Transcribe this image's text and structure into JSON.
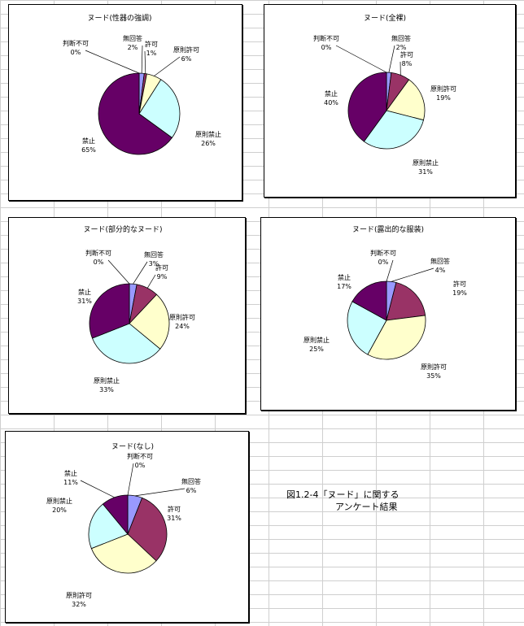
{
  "colors": {
    "無回答": "#9999ff",
    "許可": "#993366",
    "原則許可": "#ffffcc",
    "原則禁止": "#ccffff",
    "禁止": "#660066",
    "判断不可": "#3366ff"
  },
  "caption": {
    "line1": "図1.2-4「ヌード」に関する",
    "line2": "アンケート結果"
  },
  "chart_data": [
    {
      "type": "pie",
      "title": "ヌード(性器の強調)",
      "slices": [
        {
          "label": "判断不可",
          "value": 0,
          "pct": "0%"
        },
        {
          "label": "無回答",
          "value": 2,
          "pct": "2%"
        },
        {
          "label": "許可",
          "value": 1,
          "pct": "1%"
        },
        {
          "label": "原則許可",
          "value": 6,
          "pct": "6%"
        },
        {
          "label": "原則禁止",
          "value": 26,
          "pct": "26%"
        },
        {
          "label": "禁止",
          "value": 65,
          "pct": "65%"
        }
      ]
    },
    {
      "type": "pie",
      "title": "ヌード(全裸)",
      "slices": [
        {
          "label": "判断不可",
          "value": 0,
          "pct": "0%"
        },
        {
          "label": "無回答",
          "value": 2,
          "pct": "2%"
        },
        {
          "label": "許可",
          "value": 8,
          "pct": "8%"
        },
        {
          "label": "原則許可",
          "value": 19,
          "pct": "19%"
        },
        {
          "label": "原則禁止",
          "value": 31,
          "pct": "31%"
        },
        {
          "label": "禁止",
          "value": 40,
          "pct": "40%"
        }
      ]
    },
    {
      "type": "pie",
      "title": "ヌード(部分的なヌード)",
      "slices": [
        {
          "label": "判断不可",
          "value": 0,
          "pct": "0%"
        },
        {
          "label": "無回答",
          "value": 3,
          "pct": "3%"
        },
        {
          "label": "許可",
          "value": 9,
          "pct": "9%"
        },
        {
          "label": "原則許可",
          "value": 24,
          "pct": "24%"
        },
        {
          "label": "原則禁止",
          "value": 33,
          "pct": "33%"
        },
        {
          "label": "禁止",
          "value": 31,
          "pct": "31%"
        }
      ]
    },
    {
      "type": "pie",
      "title": "ヌード(露出的な服装)",
      "slices": [
        {
          "label": "判断不可",
          "value": 0,
          "pct": "0%"
        },
        {
          "label": "無回答",
          "value": 4,
          "pct": "4%"
        },
        {
          "label": "許可",
          "value": 19,
          "pct": "19%"
        },
        {
          "label": "原則許可",
          "value": 35,
          "pct": "35%"
        },
        {
          "label": "原則禁止",
          "value": 25,
          "pct": "25%"
        },
        {
          "label": "禁止",
          "value": 17,
          "pct": "17%"
        }
      ]
    },
    {
      "type": "pie",
      "title": "ヌード(なし)",
      "slices": [
        {
          "label": "判断不可",
          "value": 0,
          "pct": "0%"
        },
        {
          "label": "無回答",
          "value": 6,
          "pct": "6%"
        },
        {
          "label": "許可",
          "value": 31,
          "pct": "31%"
        },
        {
          "label": "原則許可",
          "value": 32,
          "pct": "32%"
        },
        {
          "label": "原則禁止",
          "value": 20,
          "pct": "20%"
        },
        {
          "label": "禁止",
          "value": 11,
          "pct": "11%"
        }
      ]
    }
  ]
}
